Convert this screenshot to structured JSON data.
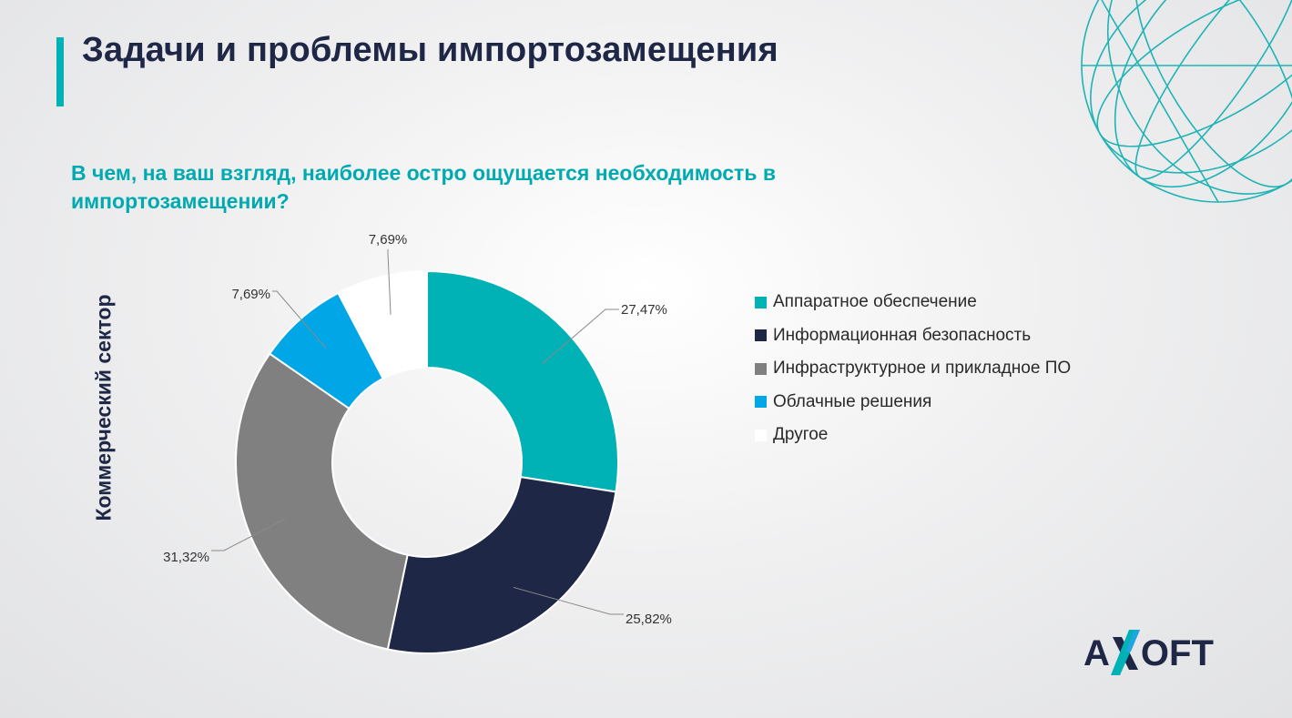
{
  "header": {
    "title": "Задачи и проблемы импортозамещения"
  },
  "question": "В чем, на ваш взгляд, наиболее остро ощущается необходимость в импортозамещении?",
  "sector_label": "Коммерческий сектор",
  "brand": {
    "logo_text_left": "A",
    "logo_text_right": "OFT"
  },
  "colors": {
    "accent": "#00b1b6",
    "navy": "#1f2747",
    "gray": "#808080",
    "sky": "#00a6e6",
    "white": "#ffffff"
  },
  "icons": {
    "decor": "wireframe-globe-icon",
    "logo": "axoft-logo-icon"
  },
  "legend": [
    {
      "label": "Аппаратное обеспечение",
      "color": "#00b1b6"
    },
    {
      "label": "Информационная безопасность",
      "color": "#1f2747"
    },
    {
      "label": "Инфраструктурное и прикладное ПО",
      "color": "#808080"
    },
    {
      "label": "Облачные решения",
      "color": "#00a6e6"
    },
    {
      "label": "Другое",
      "color": "#ffffff"
    }
  ],
  "chart_data": {
    "type": "pie",
    "variant": "donut",
    "title": "",
    "categories": [
      "Аппаратное обеспечение",
      "Информационная безопасность",
      "Инфраструктурное и прикладное ПО",
      "Облачные решения",
      "Другое"
    ],
    "values": [
      27.47,
      25.82,
      31.32,
      7.69,
      7.69
    ],
    "labels": [
      "27,47%",
      "25,82%",
      "31,32%",
      "7,69%",
      "7,69%"
    ],
    "colors": [
      "#00b1b6",
      "#1f2747",
      "#808080",
      "#00a6e6",
      "#ffffff"
    ],
    "start_angle": "12 o'clock",
    "direction": "clockwise",
    "legend_position": "right"
  }
}
